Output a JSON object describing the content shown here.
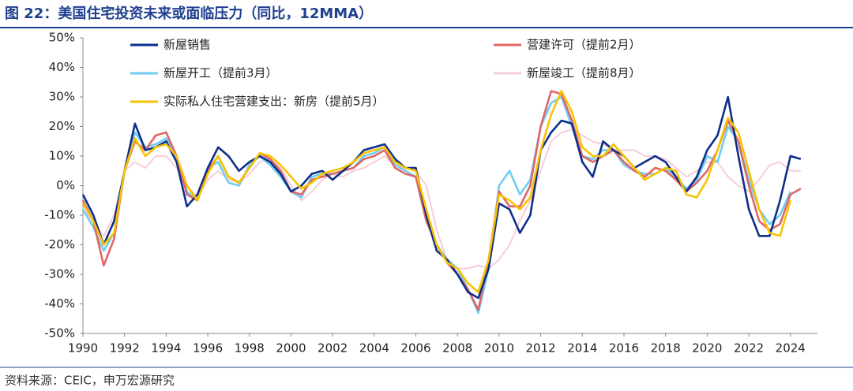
{
  "chart_data": {
    "type": "line",
    "title": "图 22：美国住宅投资未来或面临压力（同比，12MMA）",
    "source": "资料来源：CEIC，申万宏源研究",
    "legend": "top",
    "x": [
      1990,
      1990.5,
      1991,
      1991.5,
      1992,
      1992.5,
      1993,
      1993.5,
      1994,
      1994.5,
      1995,
      1995.5,
      1996,
      1996.5,
      1997,
      1997.5,
      1998,
      1998.5,
      1999,
      1999.5,
      2000,
      2000.5,
      2001,
      2001.5,
      2002,
      2002.5,
      2003,
      2003.5,
      2004,
      2004.5,
      2005,
      2005.5,
      2006,
      2006.5,
      2007,
      2007.5,
      2008,
      2008.5,
      2009,
      2009.5,
      2010,
      2010.5,
      2011,
      2011.5,
      2012,
      2012.5,
      2013,
      2013.5,
      2014,
      2014.5,
      2015,
      2015.5,
      2016,
      2016.5,
      2017,
      2017.5,
      2018,
      2018.5,
      2019,
      2019.5,
      2020,
      2020.5,
      2021,
      2021.5,
      2022,
      2022.5,
      2023,
      2023.5,
      2024,
      2024.5
    ],
    "series": [
      {
        "name": "新屋销售",
        "color": "#0d2f8c",
        "values": [
          -3,
          -10,
          -20,
          -12,
          5,
          21,
          12,
          13,
          15,
          8,
          -7,
          -3,
          6,
          13,
          10,
          5,
          8,
          10,
          8,
          4,
          -2,
          0,
          4,
          5,
          2,
          5,
          8,
          12,
          13,
          14,
          9,
          6,
          6,
          -10,
          -22,
          -25,
          -30,
          -36,
          -38,
          -28,
          -6,
          -8,
          -16,
          -10,
          12,
          18,
          22,
          21,
          8,
          3,
          15,
          12,
          10,
          6,
          8,
          10,
          8,
          3,
          -2,
          3,
          12,
          17,
          30,
          10,
          -8,
          -17,
          -17,
          -5,
          10,
          9
        ]
      },
      {
        "name": "营建许可（提前2月）",
        "color": "#e06666",
        "values": [
          -5,
          -12,
          -27,
          -18,
          5,
          15,
          12,
          17,
          18,
          10,
          -3,
          -5,
          5,
          10,
          3,
          1,
          6,
          11,
          9,
          5,
          -2,
          -3,
          2,
          3,
          4,
          5,
          6,
          9,
          10,
          12,
          6,
          4,
          3,
          -12,
          -20,
          -26,
          -30,
          -35,
          -42,
          -25,
          -2,
          -7,
          -7,
          0,
          20,
          32,
          31,
          22,
          10,
          8,
          10,
          12,
          8,
          5,
          3,
          6,
          5,
          2,
          -2,
          1,
          5,
          12,
          22,
          15,
          0,
          -12,
          -15,
          -13,
          -3,
          -1
        ]
      },
      {
        "name": "新屋开工（提前3月）",
        "color": "#6fcdf2",
        "values": [
          -8,
          -14,
          -22,
          -16,
          5,
          18,
          13,
          14,
          16,
          10,
          -2,
          -5,
          6,
          8,
          1,
          0,
          7,
          10,
          7,
          3,
          -2,
          -4,
          3,
          4,
          4,
          5,
          6,
          10,
          11,
          13,
          7,
          5,
          3,
          -10,
          -20,
          -25,
          -28,
          -35,
          -43,
          -28,
          0,
          5,
          -3,
          2,
          20,
          28,
          30,
          20,
          10,
          9,
          12,
          12,
          7,
          5,
          4,
          4,
          6,
          3,
          -1,
          2,
          10,
          8,
          20,
          15,
          2,
          -8,
          -13,
          -10,
          -2,
          null
        ]
      },
      {
        "name": "新屋竣工（提前8月）",
        "color": "#f6ced8",
        "values": [
          -8,
          -12,
          -17,
          -10,
          5,
          8,
          6,
          10,
          10,
          6,
          0,
          -4,
          2,
          5,
          2,
          1,
          4,
          8,
          9,
          6,
          0,
          -5,
          -2,
          2,
          4,
          3,
          5,
          6,
          8,
          10,
          7,
          6,
          5,
          0,
          -15,
          -25,
          -28,
          -28,
          -27,
          -28,
          -25,
          -20,
          -12,
          -5,
          5,
          15,
          18,
          19,
          17,
          15,
          14,
          12,
          12,
          12,
          10,
          10,
          9,
          6,
          3,
          5,
          8,
          8,
          3,
          0,
          -2,
          2,
          7,
          8,
          5,
          5
        ]
      },
      {
        "name": "实际私人住宅营建支出：新房（提前5月）",
        "color": "#f7c300",
        "values": [
          -6,
          -12,
          -20,
          -16,
          5,
          16,
          10,
          13,
          14,
          10,
          0,
          -5,
          4,
          10,
          3,
          1,
          6,
          11,
          10,
          7,
          3,
          -1,
          1,
          4,
          5,
          6,
          8,
          11,
          12,
          13,
          8,
          6,
          5,
          -8,
          -20,
          -26,
          -28,
          -33,
          -36,
          -25,
          -3,
          -5,
          -8,
          -4,
          12,
          24,
          32,
          25,
          13,
          10,
          10,
          14,
          10,
          6,
          2,
          4,
          6,
          5,
          -3,
          -4,
          2,
          12,
          23,
          18,
          5,
          -8,
          -16,
          -17,
          -5,
          null
        ]
      }
    ],
    "xlim": [
      1990,
      2025.3
    ],
    "xticks": [
      1990,
      1992,
      1994,
      1996,
      1998,
      2000,
      2002,
      2004,
      2006,
      2008,
      2010,
      2012,
      2014,
      2016,
      2018,
      2020,
      2022,
      2024
    ],
    "ylim": [
      -50,
      50
    ],
    "yticks": [
      {
        "value": -50,
        "label": "-50%"
      },
      {
        "value": -40,
        "label": "-40%"
      },
      {
        "value": -30,
        "label": "-30%"
      },
      {
        "value": -20,
        "label": "-20%"
      },
      {
        "value": -10,
        "label": "-10%"
      },
      {
        "value": 0,
        "label": "0%"
      },
      {
        "value": 10,
        "label": "10%"
      },
      {
        "value": 20,
        "label": "20%"
      },
      {
        "value": 30,
        "label": "30%"
      },
      {
        "value": 40,
        "label": "40%"
      },
      {
        "value": 50,
        "label": "50%"
      }
    ]
  }
}
